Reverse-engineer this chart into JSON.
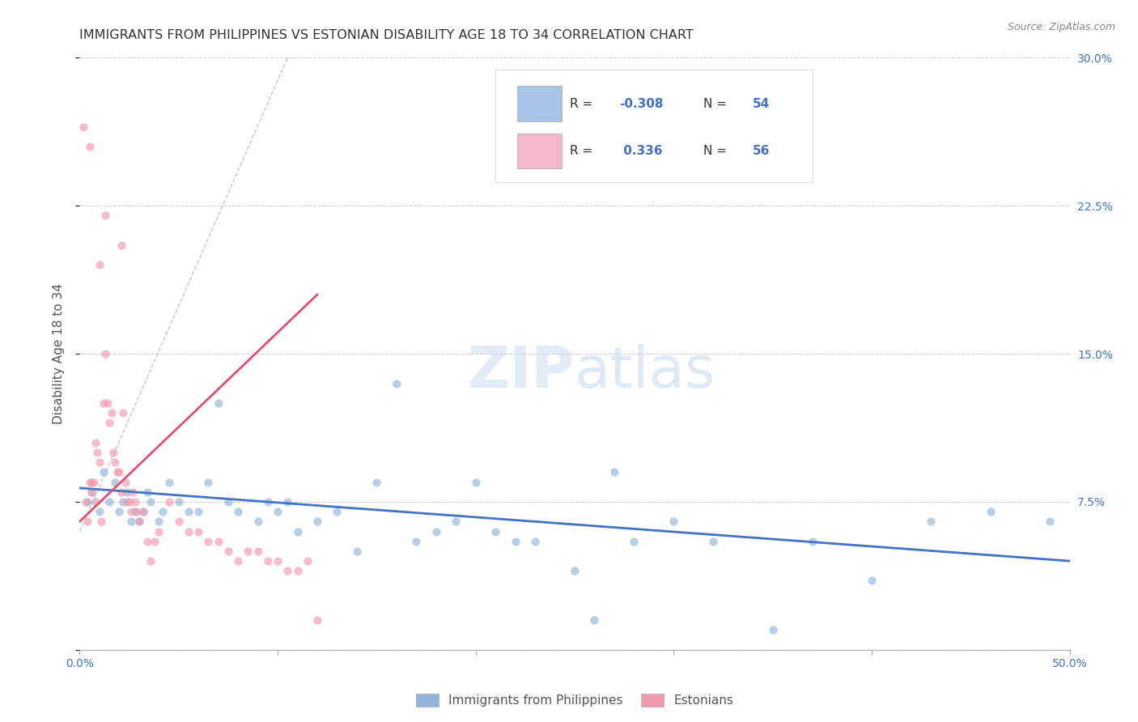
{
  "title": "IMMIGRANTS FROM PHILIPPINES VS ESTONIAN DISABILITY AGE 18 TO 34 CORRELATION CHART",
  "source": "Source: ZipAtlas.com",
  "ylabel": "Disability Age 18 to 34",
  "x_ticks": [
    0.0,
    10.0,
    20.0,
    30.0,
    40.0,
    50.0
  ],
  "y_ticks": [
    0.0,
    7.5,
    15.0,
    22.5,
    30.0
  ],
  "xlim": [
    0.0,
    50.0
  ],
  "ylim": [
    0.0,
    30.0
  ],
  "blue_scatter_x": [
    0.4,
    0.6,
    1.0,
    1.2,
    1.5,
    1.8,
    2.0,
    2.2,
    2.4,
    2.6,
    2.8,
    3.0,
    3.2,
    3.4,
    3.6,
    4.0,
    4.2,
    4.5,
    5.0,
    5.5,
    6.0,
    6.5,
    7.0,
    7.5,
    8.0,
    9.0,
    9.5,
    10.0,
    10.5,
    11.0,
    12.0,
    13.0,
    14.0,
    15.0,
    16.0,
    17.0,
    18.0,
    19.0,
    20.0,
    21.0,
    22.0,
    23.0,
    25.0,
    26.0,
    27.0,
    28.0,
    30.0,
    32.0,
    35.0,
    37.0,
    40.0,
    43.0,
    46.0,
    49.0
  ],
  "blue_scatter_y": [
    7.5,
    8.0,
    7.0,
    9.0,
    7.5,
    8.5,
    7.0,
    7.5,
    8.0,
    6.5,
    7.0,
    6.5,
    7.0,
    8.0,
    7.5,
    6.5,
    7.0,
    8.5,
    7.5,
    7.0,
    7.0,
    8.5,
    12.5,
    7.5,
    7.0,
    6.5,
    7.5,
    7.0,
    7.5,
    6.0,
    6.5,
    7.0,
    5.0,
    8.5,
    13.5,
    5.5,
    6.0,
    6.5,
    8.5,
    6.0,
    5.5,
    5.5,
    4.0,
    1.5,
    9.0,
    5.5,
    6.5,
    5.5,
    1.0,
    5.5,
    3.5,
    6.5,
    7.0,
    6.5
  ],
  "pink_scatter_x": [
    0.2,
    0.3,
    0.4,
    0.5,
    0.6,
    0.7,
    0.8,
    0.9,
    1.0,
    1.1,
    1.2,
    1.3,
    1.4,
    1.5,
    1.6,
    1.7,
    1.8,
    1.9,
    2.0,
    2.1,
    2.2,
    2.3,
    2.4,
    2.5,
    2.6,
    2.7,
    2.8,
    2.9,
    3.0,
    3.2,
    3.4,
    3.6,
    3.8,
    4.0,
    4.5,
    5.0,
    5.5,
    6.0,
    6.5,
    7.0,
    7.5,
    8.0,
    8.5,
    9.0,
    9.5,
    10.0,
    10.5,
    11.0,
    11.5,
    12.0,
    1.3,
    2.1,
    1.0,
    0.8,
    0.5,
    0.6
  ],
  "pink_scatter_y": [
    26.5,
    7.5,
    6.5,
    8.5,
    8.5,
    8.5,
    10.5,
    10.0,
    9.5,
    6.5,
    12.5,
    15.0,
    12.5,
    11.5,
    12.0,
    10.0,
    9.5,
    9.0,
    9.0,
    8.0,
    12.0,
    8.5,
    7.5,
    7.5,
    7.0,
    8.0,
    7.5,
    7.0,
    6.5,
    7.0,
    5.5,
    4.5,
    5.5,
    6.0,
    7.5,
    6.5,
    6.0,
    6.0,
    5.5,
    5.5,
    5.0,
    4.5,
    5.0,
    5.0,
    4.5,
    4.5,
    4.0,
    4.0,
    4.5,
    1.5,
    22.0,
    20.5,
    19.5,
    7.5,
    25.5,
    8.0
  ],
  "blue_trend_x": [
    0.0,
    50.0
  ],
  "blue_trend_y": [
    8.2,
    4.5
  ],
  "pink_trend_x": [
    0.0,
    12.0
  ],
  "pink_trend_y": [
    6.5,
    18.0
  ],
  "ref_line_x": [
    0.0,
    10.5
  ],
  "ref_line_y": [
    6.0,
    30.0
  ],
  "watermark_zip": "ZIP",
  "watermark_atlas": "atlas",
  "scatter_size": 55,
  "scatter_alpha": 0.65,
  "blue_scatter_color": "#92b4d8",
  "pink_scatter_color": "#f09ab0",
  "blue_line_color": "#4472c4",
  "pink_line_color": "#e05070",
  "background_color": "#ffffff",
  "grid_color": "#cccccc",
  "title_fontsize": 11.5,
  "axis_label_fontsize": 11,
  "tick_fontsize": 10,
  "legend_r_color": "#4472c4",
  "legend_n_color": "#4472c4",
  "legend_text_color": "#333333",
  "legend_blue_patch": "#aac4e8",
  "legend_pink_patch": "#f4b8c8"
}
